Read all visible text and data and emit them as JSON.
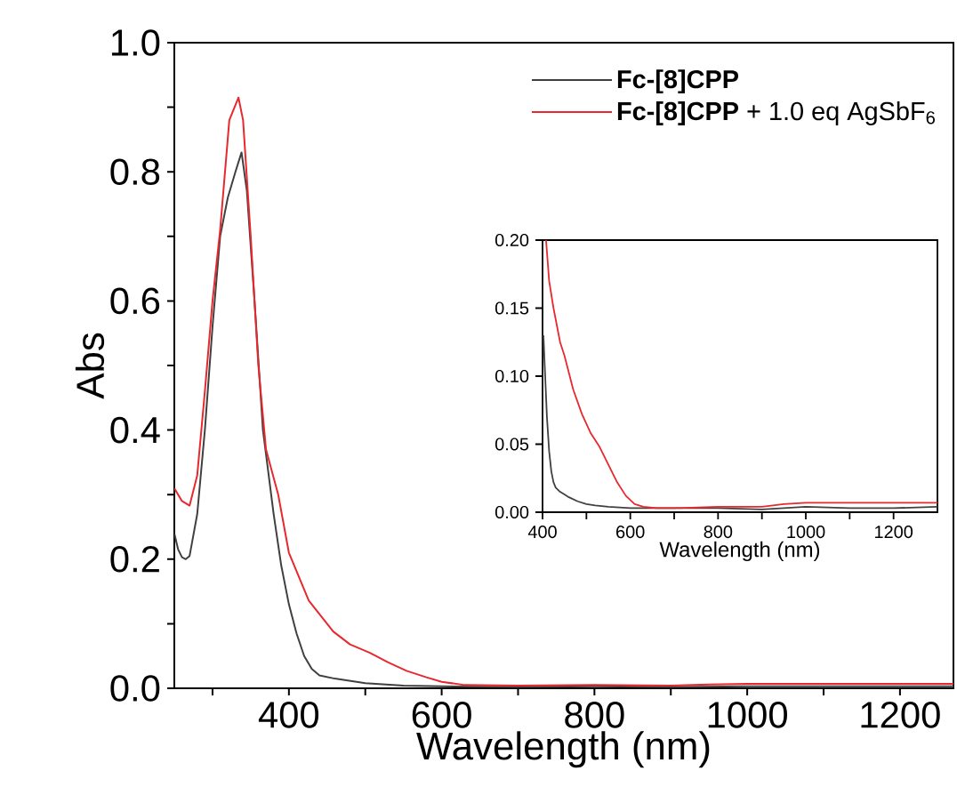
{
  "chart_data": [
    {
      "type": "line",
      "xlabel": "Wavelength (nm)",
      "ylabel": "Abs",
      "xlim": [
        250,
        1270
      ],
      "ylim": [
        0,
        1.0
      ],
      "xticks": [
        {
          "value": 300,
          "label": null
        },
        400,
        {
          "value": 500,
          "label": null
        },
        600,
        {
          "value": 700,
          "label": null
        },
        800,
        {
          "value": 900,
          "label": null
        },
        1000,
        {
          "value": 1100,
          "label": null
        },
        1200
      ],
      "yticks": [
        {
          "value": 0,
          "label": "0.0"
        },
        {
          "value": 0.1,
          "label": null
        },
        0.2,
        {
          "value": 0.3,
          "label": null
        },
        0.4,
        {
          "value": 0.5,
          "label": null
        },
        0.6,
        {
          "value": 0.7,
          "label": null
        },
        0.8,
        {
          "value": 0.9,
          "label": null
        },
        {
          "value": 1,
          "label": "1.0"
        }
      ],
      "legend": "top right",
      "series": [
        {
          "name": "**Fc-[8]CPP**",
          "color": "#404040",
          "x": [
            250,
            255,
            260,
            265,
            270,
            280,
            290,
            300,
            310,
            320,
            330,
            338,
            345,
            355,
            366,
            380,
            390,
            400,
            410,
            420,
            430,
            440,
            460,
            500,
            550,
            600,
            700,
            800,
            900,
            1000,
            1100,
            1200,
            1270
          ],
          "values": [
            0.24,
            0.215,
            0.203,
            0.2,
            0.205,
            0.27,
            0.4,
            0.56,
            0.7,
            0.76,
            0.8,
            0.83,
            0.77,
            0.6,
            0.4,
            0.27,
            0.19,
            0.13,
            0.085,
            0.05,
            0.03,
            0.02,
            0.015,
            0.008,
            0.004,
            0.003,
            0.002,
            0.003,
            0.002,
            0.003,
            0.003,
            0.003,
            0.003
          ]
        },
        {
          "name": "**Fc-[8]CPP** + 1.0 eq AgSbF$_{6}$",
          "color": "#e8282e",
          "x": [
            250,
            260,
            270,
            280,
            290,
            300,
            310,
            322,
            334,
            340,
            350,
            360,
            370,
            386,
            400,
            426,
            458,
            480,
            506,
            530,
            554,
            580,
            600,
            630,
            700,
            800,
            900,
            950,
            1000,
            1100,
            1200,
            1270
          ],
          "values": [
            0.31,
            0.29,
            0.283,
            0.33,
            0.46,
            0.6,
            0.71,
            0.88,
            0.915,
            0.88,
            0.7,
            0.5,
            0.37,
            0.3,
            0.21,
            0.136,
            0.088,
            0.068,
            0.055,
            0.04,
            0.027,
            0.017,
            0.01,
            0.005,
            0.004,
            0.005,
            0.004,
            0.006,
            0.007,
            0.007,
            0.007,
            0.007
          ]
        }
      ]
    },
    {
      "type": "line",
      "xlabel": "Wavelength (nm)",
      "xlim": [
        400,
        1300
      ],
      "ylim": [
        0,
        0.2
      ],
      "xticks": [
        400,
        {
          "value": 500,
          "label": null
        },
        600,
        {
          "value": 700,
          "label": null
        },
        800,
        {
          "value": 900,
          "label": null
        },
        1000,
        {
          "value": 1100,
          "label": null
        },
        1200
      ],
      "yticks": [
        {
          "value": 0.0,
          "label": "0.00"
        },
        {
          "value": 0.05,
          "label": "0.05"
        },
        {
          "value": 0.1,
          "label": "0.10"
        },
        {
          "value": 0.15,
          "label": "0.15"
        },
        {
          "value": 0.2,
          "label": "0.20"
        }
      ],
      "series": [
        {
          "color": "#404040",
          "x": [
            402,
            406,
            410,
            415,
            420,
            425,
            430,
            440,
            450,
            460,
            480,
            500,
            520,
            550,
            600,
            700,
            800,
            900,
            1000,
            1100,
            1200,
            1300
          ],
          "values": [
            0.13,
            0.1,
            0.07,
            0.045,
            0.03,
            0.022,
            0.018,
            0.015,
            0.013,
            0.011,
            0.008,
            0.006,
            0.005,
            0.004,
            0.003,
            0.003,
            0.003,
            0.002,
            0.004,
            0.003,
            0.003,
            0.004
          ]
        },
        {
          "color": "#e8282e",
          "x": [
            408,
            415,
            425,
            440,
            450,
            470,
            490,
            510,
            530,
            550,
            570,
            590,
            610,
            630,
            660,
            700,
            800,
            900,
            950,
            1000,
            1100,
            1200,
            1300
          ],
          "values": [
            0.2,
            0.17,
            0.15,
            0.125,
            0.115,
            0.09,
            0.072,
            0.058,
            0.048,
            0.035,
            0.022,
            0.012,
            0.006,
            0.004,
            0.003,
            0.003,
            0.004,
            0.004,
            0.006,
            0.007,
            0.007,
            0.007,
            0.007
          ]
        }
      ]
    }
  ]
}
